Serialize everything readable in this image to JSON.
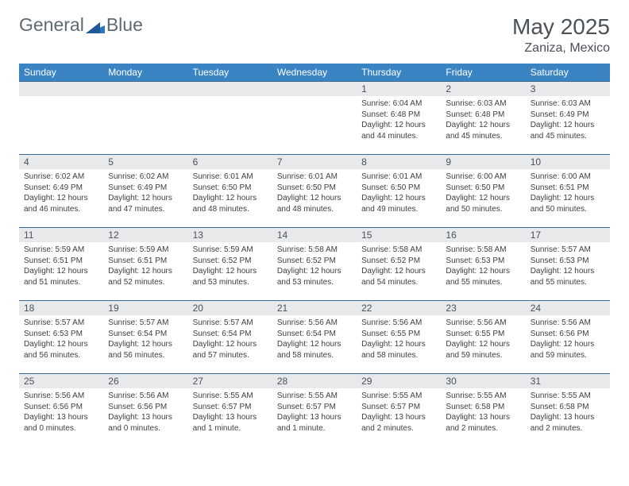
{
  "logo": {
    "word1": "General",
    "word2": "Blue"
  },
  "title": "May 2025",
  "location": "Zaniza, Mexico",
  "colors": {
    "header_bg": "#3b84c4",
    "header_text": "#ffffff",
    "daynum_bg": "#e7e9eb",
    "cell_border": "#3b6a94",
    "body_text": "#3a3f44",
    "title_text": "#4a5258"
  },
  "day_headers": [
    "Sunday",
    "Monday",
    "Tuesday",
    "Wednesday",
    "Thursday",
    "Friday",
    "Saturday"
  ],
  "weeks": [
    [
      null,
      null,
      null,
      null,
      {
        "n": "1",
        "sunrise": "6:04 AM",
        "sunset": "6:48 PM",
        "daylight": "12 hours and 44 minutes."
      },
      {
        "n": "2",
        "sunrise": "6:03 AM",
        "sunset": "6:48 PM",
        "daylight": "12 hours and 45 minutes."
      },
      {
        "n": "3",
        "sunrise": "6:03 AM",
        "sunset": "6:49 PM",
        "daylight": "12 hours and 45 minutes."
      }
    ],
    [
      {
        "n": "4",
        "sunrise": "6:02 AM",
        "sunset": "6:49 PM",
        "daylight": "12 hours and 46 minutes."
      },
      {
        "n": "5",
        "sunrise": "6:02 AM",
        "sunset": "6:49 PM",
        "daylight": "12 hours and 47 minutes."
      },
      {
        "n": "6",
        "sunrise": "6:01 AM",
        "sunset": "6:50 PM",
        "daylight": "12 hours and 48 minutes."
      },
      {
        "n": "7",
        "sunrise": "6:01 AM",
        "sunset": "6:50 PM",
        "daylight": "12 hours and 48 minutes."
      },
      {
        "n": "8",
        "sunrise": "6:01 AM",
        "sunset": "6:50 PM",
        "daylight": "12 hours and 49 minutes."
      },
      {
        "n": "9",
        "sunrise": "6:00 AM",
        "sunset": "6:50 PM",
        "daylight": "12 hours and 50 minutes."
      },
      {
        "n": "10",
        "sunrise": "6:00 AM",
        "sunset": "6:51 PM",
        "daylight": "12 hours and 50 minutes."
      }
    ],
    [
      {
        "n": "11",
        "sunrise": "5:59 AM",
        "sunset": "6:51 PM",
        "daylight": "12 hours and 51 minutes."
      },
      {
        "n": "12",
        "sunrise": "5:59 AM",
        "sunset": "6:51 PM",
        "daylight": "12 hours and 52 minutes."
      },
      {
        "n": "13",
        "sunrise": "5:59 AM",
        "sunset": "6:52 PM",
        "daylight": "12 hours and 53 minutes."
      },
      {
        "n": "14",
        "sunrise": "5:58 AM",
        "sunset": "6:52 PM",
        "daylight": "12 hours and 53 minutes."
      },
      {
        "n": "15",
        "sunrise": "5:58 AM",
        "sunset": "6:52 PM",
        "daylight": "12 hours and 54 minutes."
      },
      {
        "n": "16",
        "sunrise": "5:58 AM",
        "sunset": "6:53 PM",
        "daylight": "12 hours and 55 minutes."
      },
      {
        "n": "17",
        "sunrise": "5:57 AM",
        "sunset": "6:53 PM",
        "daylight": "12 hours and 55 minutes."
      }
    ],
    [
      {
        "n": "18",
        "sunrise": "5:57 AM",
        "sunset": "6:53 PM",
        "daylight": "12 hours and 56 minutes."
      },
      {
        "n": "19",
        "sunrise": "5:57 AM",
        "sunset": "6:54 PM",
        "daylight": "12 hours and 56 minutes."
      },
      {
        "n": "20",
        "sunrise": "5:57 AM",
        "sunset": "6:54 PM",
        "daylight": "12 hours and 57 minutes."
      },
      {
        "n": "21",
        "sunrise": "5:56 AM",
        "sunset": "6:54 PM",
        "daylight": "12 hours and 58 minutes."
      },
      {
        "n": "22",
        "sunrise": "5:56 AM",
        "sunset": "6:55 PM",
        "daylight": "12 hours and 58 minutes."
      },
      {
        "n": "23",
        "sunrise": "5:56 AM",
        "sunset": "6:55 PM",
        "daylight": "12 hours and 59 minutes."
      },
      {
        "n": "24",
        "sunrise": "5:56 AM",
        "sunset": "6:56 PM",
        "daylight": "12 hours and 59 minutes."
      }
    ],
    [
      {
        "n": "25",
        "sunrise": "5:56 AM",
        "sunset": "6:56 PM",
        "daylight": "13 hours and 0 minutes."
      },
      {
        "n": "26",
        "sunrise": "5:56 AM",
        "sunset": "6:56 PM",
        "daylight": "13 hours and 0 minutes."
      },
      {
        "n": "27",
        "sunrise": "5:55 AM",
        "sunset": "6:57 PM",
        "daylight": "13 hours and 1 minute."
      },
      {
        "n": "28",
        "sunrise": "5:55 AM",
        "sunset": "6:57 PM",
        "daylight": "13 hours and 1 minute."
      },
      {
        "n": "29",
        "sunrise": "5:55 AM",
        "sunset": "6:57 PM",
        "daylight": "13 hours and 2 minutes."
      },
      {
        "n": "30",
        "sunrise": "5:55 AM",
        "sunset": "6:58 PM",
        "daylight": "13 hours and 2 minutes."
      },
      {
        "n": "31",
        "sunrise": "5:55 AM",
        "sunset": "6:58 PM",
        "daylight": "13 hours and 2 minutes."
      }
    ]
  ],
  "labels": {
    "sunrise": "Sunrise: ",
    "sunset": "Sunset: ",
    "daylight": "Daylight: "
  }
}
